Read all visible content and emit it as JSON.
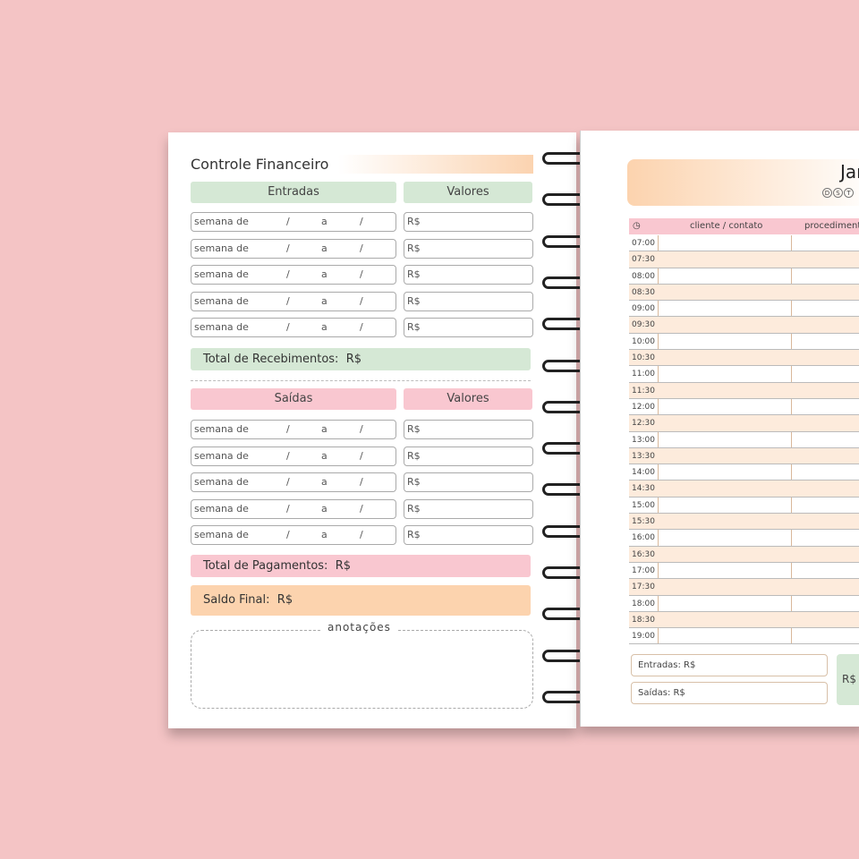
{
  "left": {
    "title": "Controle Financeiro",
    "income": {
      "header": "Entradas",
      "values_header": "Valores",
      "rows": [
        "semana de",
        "semana de",
        "semana de",
        "semana de",
        "semana de"
      ],
      "currency": "R$",
      "total": "Total de Recebimentos:"
    },
    "expenses": {
      "header": "Saídas",
      "values_header": "Valores",
      "rows": [
        "semana de",
        "semana de",
        "semana de",
        "semana de",
        "semana de"
      ],
      "currency": "R$",
      "total": "Total de Pagamentos:"
    },
    "separators": {
      "slash": "/",
      "a": "a"
    },
    "balance": "Saldo Final:",
    "notes": "anotações"
  },
  "right": {
    "month": "Jan",
    "days": [
      "D",
      "S",
      "T"
    ],
    "columns": [
      "cliente / contato",
      "procedimento"
    ],
    "times": [
      "07:00",
      "07:30",
      "08:00",
      "08:30",
      "09:00",
      "09:30",
      "10:00",
      "10:30",
      "11:00",
      "11:30",
      "12:00",
      "12:30",
      "13:00",
      "13:30",
      "14:00",
      "14:30",
      "15:00",
      "15:30",
      "16:00",
      "16:30",
      "17:00",
      "17:30",
      "18:00",
      "18:30",
      "19:00"
    ],
    "entradas": "Entradas: R$",
    "saidas": "Saídas: R$",
    "saldo": "R$"
  },
  "colors": {
    "background": "#f4c4c5",
    "green": "#d5e8d5",
    "pink": "#f9c7d0",
    "peach": "#fcd3ae"
  }
}
